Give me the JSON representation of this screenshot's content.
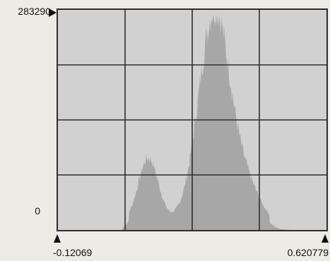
{
  "histogram": {
    "y_max_label": "283290",
    "y_min_label": "0",
    "x_min_label": "-0.12069",
    "x_max_label": "0.620779",
    "colors": {
      "background": "#d1d1d1",
      "fill": "#a7a7a7",
      "grid": "#2e2e2e",
      "marker": "#111111"
    },
    "icons": {
      "y_max_marker": "right-triangle-icon",
      "x_min_marker": "up-triangle-icon",
      "x_max_marker": "up-triangle-icon"
    }
  }
}
